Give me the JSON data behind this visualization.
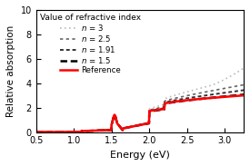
{
  "title": "",
  "xlabel": "Energy (eV)",
  "ylabel": "Relative absorption",
  "xlim": [
    0.5,
    3.25
  ],
  "ylim": [
    0,
    10
  ],
  "yticks": [
    0,
    2,
    4,
    6,
    8,
    10
  ],
  "xticks": [
    0.5,
    1.0,
    1.5,
    2.0,
    2.5,
    3.0
  ],
  "legend_title": "Value of refractive index",
  "line_colors": [
    "#bbbbbb",
    "#666666",
    "#333333",
    "#000000",
    "#ff0000"
  ],
  "line_widths": [
    1.2,
    1.2,
    1.4,
    1.8,
    1.8
  ],
  "background_color": "#ffffff"
}
